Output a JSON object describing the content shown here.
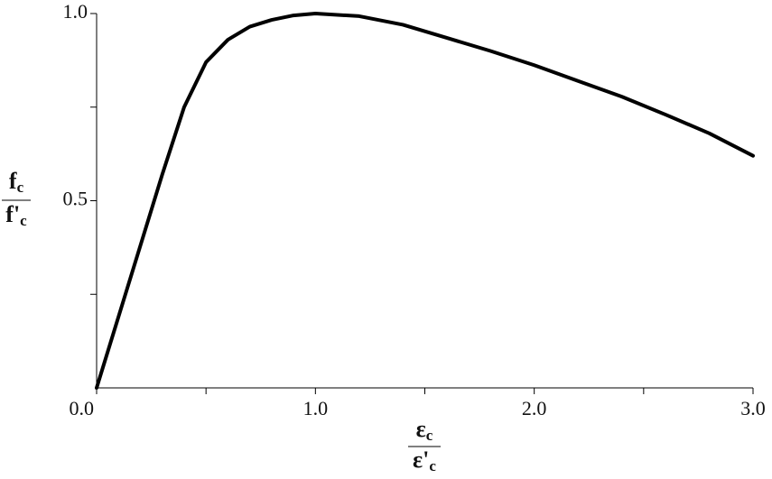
{
  "chart_data": {
    "type": "line",
    "ylabel": {
      "numerator": {
        "text": "f",
        "subscript": "c"
      },
      "denominator": {
        "text": "f'",
        "subscript": "c"
      }
    },
    "xlabel": {
      "numerator": {
        "text": "ε",
        "subscript": "c"
      },
      "denominator": {
        "text": "ε'",
        "subscript": "c"
      }
    },
    "x": [
      0,
      0.1,
      0.2,
      0.3,
      0.4,
      0.5,
      0.6,
      0.7,
      0.8,
      0.9,
      1.0,
      1.2,
      1.4,
      1.6,
      1.8,
      2.0,
      2.2,
      2.4,
      2.6,
      2.8,
      3.0
    ],
    "values": [
      0,
      0.19,
      0.38,
      0.57,
      0.75,
      0.87,
      0.93,
      0.965,
      0.983,
      0.995,
      1.0,
      0.993,
      0.97,
      0.935,
      0.9,
      0.862,
      0.82,
      0.778,
      0.73,
      0.68,
      0.62
    ],
    "color": "#000000",
    "xlim": [
      0,
      3
    ],
    "ylim": [
      0,
      1
    ],
    "xticks": [
      {
        "value": 0,
        "label": "0.0"
      },
      {
        "value": 1,
        "label": "1.0"
      },
      {
        "value": 2,
        "label": "2.0"
      },
      {
        "value": 3,
        "label": "3.0"
      }
    ],
    "xminorticks": [
      0.5,
      1.5,
      2.5
    ],
    "yticks": [
      {
        "value": 0.5,
        "label": "0.5"
      },
      {
        "value": 1,
        "label": "1.0"
      }
    ],
    "yminorticks": [
      0.25,
      0.75
    ],
    "grid": false
  }
}
